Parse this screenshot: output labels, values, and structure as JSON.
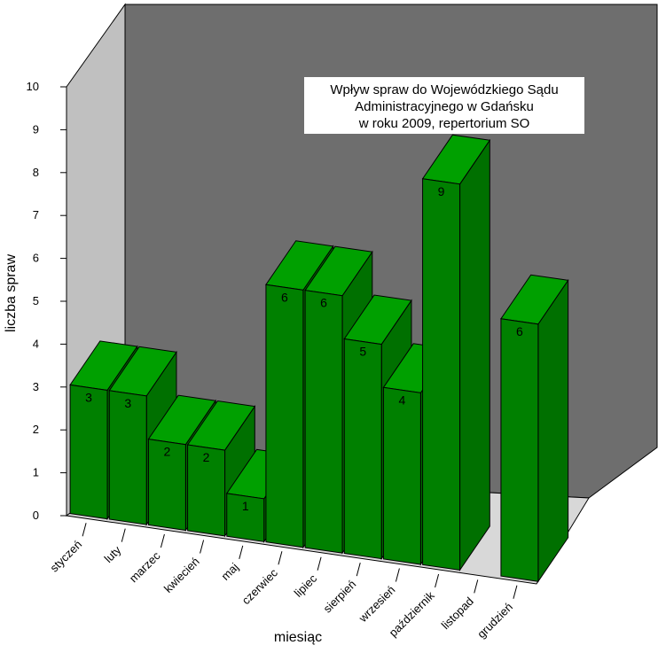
{
  "chart_data": {
    "type": "bar",
    "title_lines": [
      "Wpływ spraw do Wojewódzkiego Sądu",
      "Administracyjnego w Gdańsku",
      "w roku 2009, repertorium SO"
    ],
    "xlabel": "miesiąc",
    "ylabel": "liczba spraw",
    "ylim": [
      0,
      10
    ],
    "yticks": [
      "0",
      "1",
      "2",
      "3",
      "4",
      "5",
      "6",
      "7",
      "8",
      "9",
      "10"
    ],
    "categories": [
      "styczeń",
      "luty",
      "marzec",
      "kwiecień",
      "maj",
      "czerwiec",
      "lipiec",
      "sierpień",
      "wrzesień",
      "październik",
      "listopad",
      "grudzień"
    ],
    "values": [
      3,
      3,
      2,
      2,
      1,
      6,
      6,
      5,
      4,
      9,
      0,
      6
    ],
    "data_labels": [
      "3",
      "3",
      "2",
      "2",
      "1",
      "6",
      "6",
      "5",
      "4",
      "9",
      "",
      "6"
    ],
    "grid": false,
    "style": "3d",
    "colors": {
      "bar_front": "#008000",
      "bar_side": "#007000",
      "bar_top": "#00a000",
      "back_wall": "#6e6e6e",
      "side_wall": "#c0c0c0",
      "floor": "#d8d8d8"
    }
  }
}
